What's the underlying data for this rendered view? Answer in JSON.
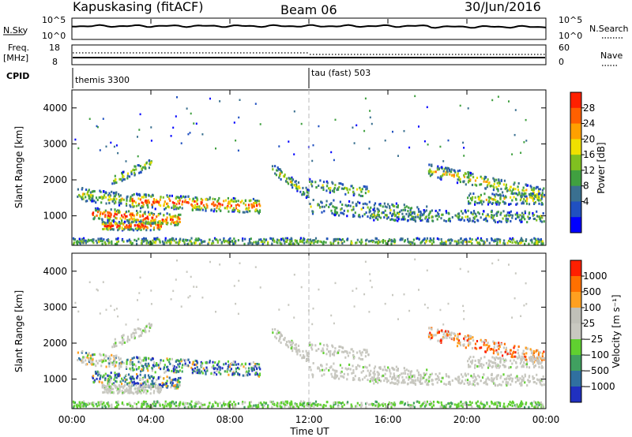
{
  "header": {
    "station": "Kapuskasing (fitACF)",
    "beam": "Beam 06",
    "date": "30/Jun/2016"
  },
  "panels": {
    "nsky_label": "N.Sky",
    "nsearch_label": "N.Search",
    "freq_label_line1": "Freq.",
    "freq_label_line2": "[MHz]",
    "nave_label": "Nave",
    "cpid_label": "CPID",
    "noise_ticks_left": [
      "10^5",
      "10^0"
    ],
    "noise_ticks_right": [
      "10^5",
      "10^0"
    ],
    "freq_ticks": [
      "18",
      "8"
    ],
    "nave_ticks": [
      "60",
      "0"
    ],
    "cpid_1": "themis 3300",
    "cpid_2": "tau (fast) 503"
  },
  "chart_data": [
    {
      "type": "heatmap",
      "name": "power",
      "ylabel": "Slant Range [km]",
      "ylim": [
        180,
        4500
      ],
      "yticks": [
        "4000",
        "3000",
        "2000",
        "1000"
      ],
      "colorbar_label": "Power [dB]",
      "colorbar_ticks": [
        "28",
        "24",
        "20",
        "16",
        "12",
        "8",
        "4"
      ],
      "colors": [
        "#0000ff",
        "#2050c0",
        "#3a7090",
        "#40a040",
        "#80c020",
        "#f0e000",
        "#ffa000",
        "#ff6000",
        "#ff2000"
      ]
    },
    {
      "type": "heatmap",
      "name": "velocity",
      "ylabel": "Slant Range [km]",
      "ylim": [
        180,
        4500
      ],
      "yticks": [
        "4000",
        "3000",
        "2000",
        "1000"
      ],
      "colorbar_label": "Velocity [m s⁻¹]",
      "colorbar_ticks": [
        "1000",
        "500",
        "100",
        "25",
        "−25",
        "−100",
        "−500",
        "−1000"
      ],
      "colors": [
        "#2030c0",
        "#3070a0",
        "#40a060",
        "#60d030",
        "#c8c8c0",
        "#c0c0b8",
        "#ffa020",
        "#ff7000",
        "#ff2000"
      ]
    }
  ],
  "time_axis": {
    "xlabel": "Time UT",
    "ticks": [
      "00:00",
      "04:00",
      "08:00",
      "12:00",
      "16:00",
      "20:00",
      "00:00"
    ],
    "xlim": [
      "00:00",
      "24:00"
    ]
  }
}
